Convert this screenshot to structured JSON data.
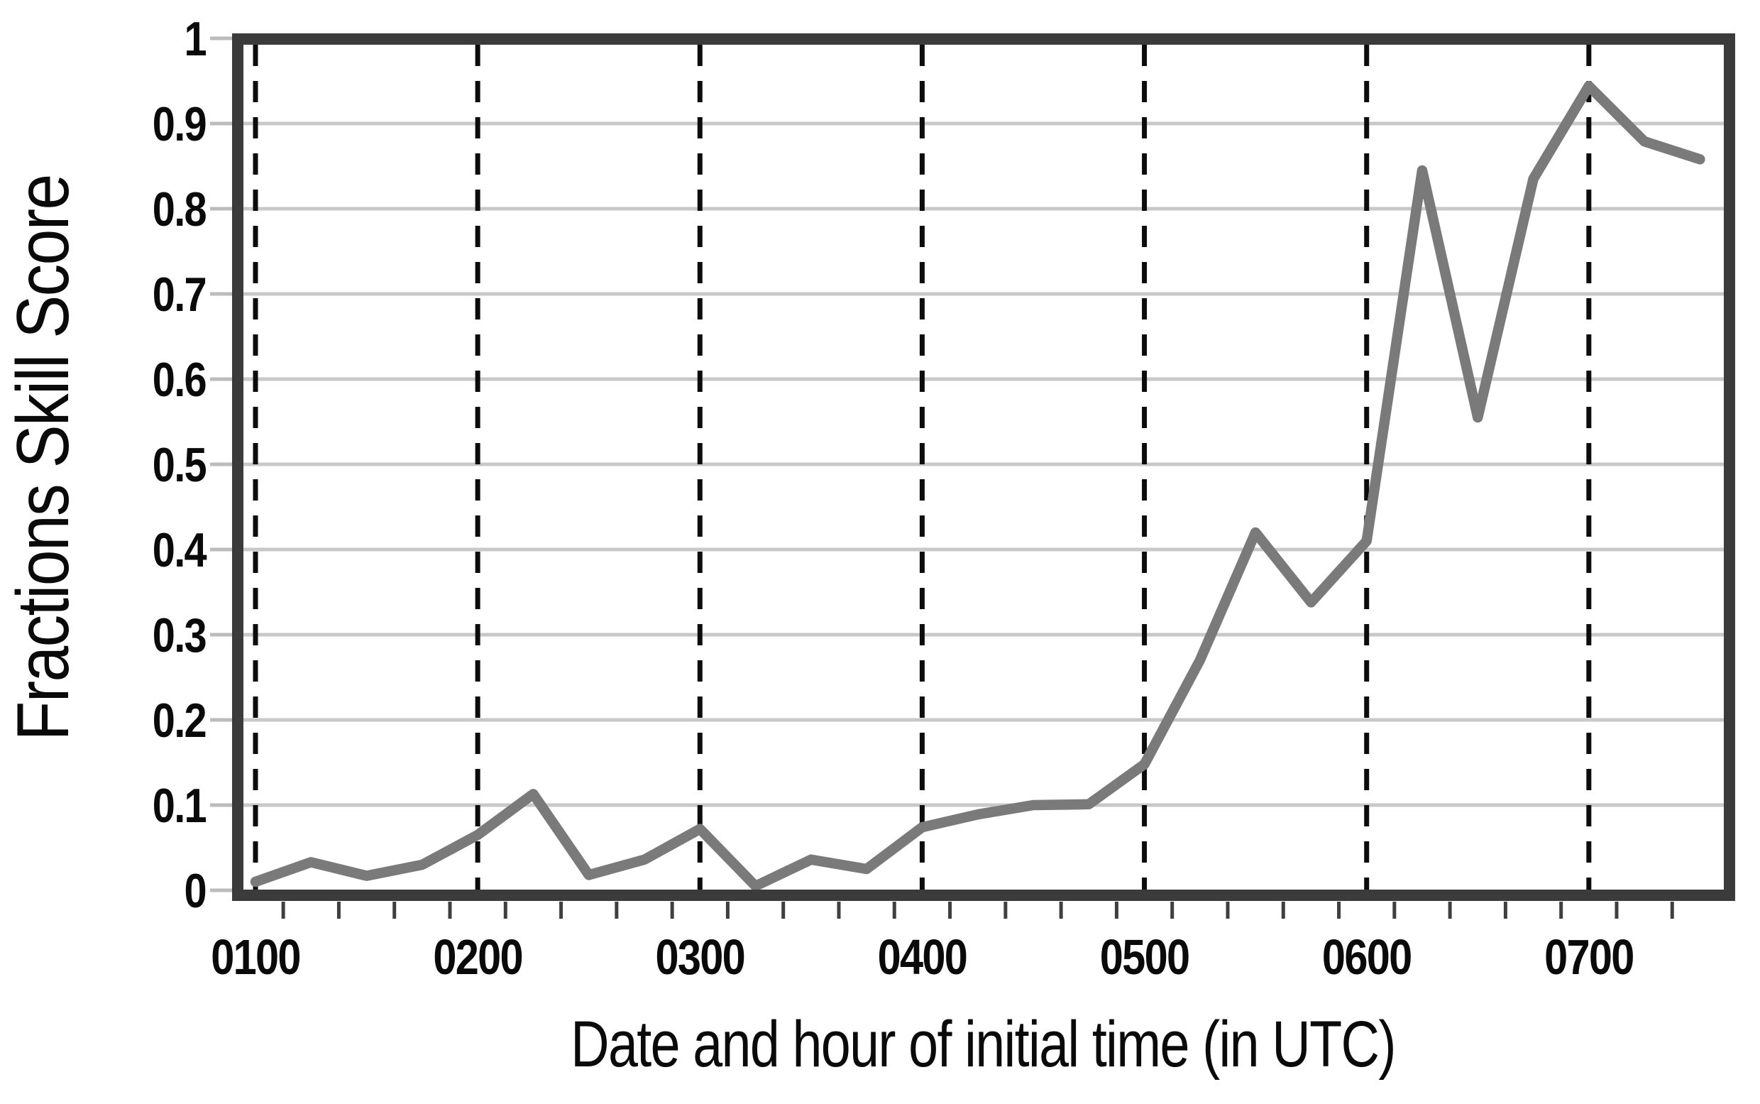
{
  "chart_data": {
    "type": "line",
    "title": "",
    "xlabel": "Date and hour of initial time (in UTC)",
    "ylabel": "Fractions Skill Score",
    "x_tick_labels": [
      "0100",
      "0200",
      "0300",
      "0400",
      "0500",
      "0600",
      "0700"
    ],
    "y_tick_labels": [
      "0",
      "0.1",
      "0.2",
      "0.3",
      "0.4",
      "0.5",
      "0.6",
      "0.7",
      "0.8",
      "0.9",
      "1"
    ],
    "ylim": [
      0,
      1
    ],
    "x_domain_time": [
      "0057",
      "0736"
    ],
    "grid": {
      "horizontal": "solid light gray every 0.1",
      "vertical": "dashed black at every labeled hour"
    },
    "legend_position": "none",
    "series": [
      {
        "name": "Fractions Skill Score",
        "color": "#7a7a7a",
        "points": [
          {
            "t": "0100",
            "value": 0.01
          },
          {
            "t": "0115",
            "value": 0.033
          },
          {
            "t": "0130",
            "value": 0.017
          },
          {
            "t": "0145",
            "value": 0.03
          },
          {
            "t": "0200",
            "value": 0.065
          },
          {
            "t": "0215",
            "value": 0.113
          },
          {
            "t": "0230",
            "value": 0.018
          },
          {
            "t": "0245",
            "value": 0.036
          },
          {
            "t": "0300",
            "value": 0.072
          },
          {
            "t": "0315",
            "value": 0.005
          },
          {
            "t": "0330",
            "value": 0.036
          },
          {
            "t": "0345",
            "value": 0.025
          },
          {
            "t": "0400",
            "value": 0.074
          },
          {
            "t": "0415",
            "value": 0.089
          },
          {
            "t": "0430",
            "value": 0.1
          },
          {
            "t": "0445",
            "value": 0.101
          },
          {
            "t": "0500",
            "value": 0.148
          },
          {
            "t": "0515",
            "value": 0.27
          },
          {
            "t": "0530",
            "value": 0.42
          },
          {
            "t": "0545",
            "value": 0.338
          },
          {
            "t": "0600",
            "value": 0.41
          },
          {
            "t": "0615",
            "value": 0.845
          },
          {
            "t": "0630",
            "value": 0.555
          },
          {
            "t": "0645",
            "value": 0.835
          },
          {
            "t": "0700",
            "value": 0.944
          },
          {
            "t": "0715",
            "value": 0.879
          },
          {
            "t": "0730",
            "value": 0.858
          }
        ]
      }
    ],
    "colors": {
      "series_line": "#7a7a7a",
      "plot_frame": "#3b3b3b",
      "horizontal_gridline": "#c8c8c8",
      "vertical_dashed_gridline": "#0c0c0c",
      "x_minor_tick": "#3f3f3f",
      "y_tick_stub": "#bbbbbb",
      "text": "#0a0a0a",
      "background": "#ffffff"
    }
  }
}
